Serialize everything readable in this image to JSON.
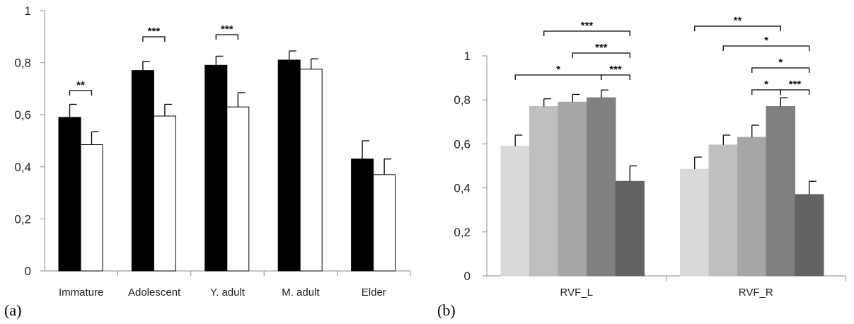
{
  "chart_data": [
    {
      "panel_label": "(a)",
      "type": "bar",
      "categories": [
        "Immature",
        "Adolescent",
        "Y. adult",
        "M. adult",
        "Elder"
      ],
      "ylim": [
        0,
        1
      ],
      "yticks": [
        "0",
        "0,2",
        "0,4",
        "0,6",
        "0,8",
        "1"
      ],
      "grid": false,
      "series": [
        {
          "color": "#000000",
          "values": [
            0.59,
            0.77,
            0.79,
            0.81,
            0.43
          ],
          "errors": [
            0.05,
            0.035,
            0.035,
            0.035,
            0.07
          ]
        },
        {
          "color": "#ffffff",
          "values": [
            0.485,
            0.595,
            0.63,
            0.775,
            0.37
          ],
          "errors": [
            0.05,
            0.045,
            0.055,
            0.04,
            0.06
          ]
        }
      ],
      "significance": [
        {
          "category": 0,
          "label": "**"
        },
        {
          "category": 1,
          "label": "***"
        },
        {
          "category": 2,
          "label": "***"
        }
      ]
    },
    {
      "panel_label": "(b)",
      "type": "bar",
      "categories": [
        "RVF_L",
        "RVF_R"
      ],
      "ylim": [
        0,
        1
      ],
      "yticks": [
        "0",
        "0,2",
        "0,4",
        "0,6",
        "0,8",
        "1"
      ],
      "grid": false,
      "series": [
        {
          "color": "#d9d9d9",
          "values": [
            0.59,
            0.485
          ],
          "errors": [
            0.05,
            0.055
          ]
        },
        {
          "color": "#bfbfbf",
          "values": [
            0.77,
            0.595
          ],
          "errors": [
            0.035,
            0.045
          ]
        },
        {
          "color": "#a6a6a6",
          "values": [
            0.79,
            0.63
          ],
          "errors": [
            0.035,
            0.055
          ]
        },
        {
          "color": "#808080",
          "values": [
            0.81,
            0.77
          ],
          "errors": [
            0.035,
            0.04
          ]
        },
        {
          "color": "#636363",
          "values": [
            0.43,
            0.37
          ],
          "errors": [
            0.07,
            0.06
          ]
        }
      ],
      "significance": [
        {
          "category": 0,
          "from": 0,
          "to": 3,
          "label": "*"
        },
        {
          "category": 0,
          "from": 3,
          "to": 4,
          "label": "***"
        },
        {
          "category": 0,
          "from": 2,
          "to": 4,
          "label": "***"
        },
        {
          "category": 0,
          "from": 1,
          "to": 4,
          "label": "***"
        },
        {
          "category": 1,
          "from": 2,
          "to": 3,
          "label": "*"
        },
        {
          "category": 1,
          "from": 3,
          "to": 4,
          "label": "***"
        },
        {
          "category": 1,
          "from": 2,
          "to": 4,
          "label": "*"
        },
        {
          "category": 1,
          "from": 1,
          "to": 4,
          "label": "*"
        },
        {
          "category": 1,
          "from": 0,
          "to": 3,
          "label": "**"
        }
      ]
    }
  ]
}
